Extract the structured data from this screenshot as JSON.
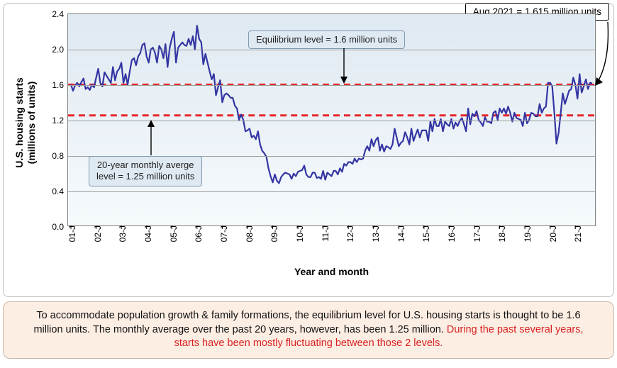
{
  "chart": {
    "type": "line",
    "yaxis_title": "U.S. housing starts\n(millions of units)",
    "xaxis_title": "Year and month",
    "title_fontsize": 14,
    "label_fontsize": 12,
    "background_gradient": [
      "#dfe9f1",
      "#f6fafd"
    ],
    "grid_color": "#9d9d9d",
    "border_color": "#7f7f7f",
    "ylim": [
      0.0,
      2.4
    ],
    "ytick_step": 0.4,
    "yticks": [
      "0.0",
      "0.4",
      "0.8",
      "1.2",
      "1.6",
      "2.0",
      "2.4"
    ],
    "xticks": [
      "01-J",
      "02-J",
      "03-J",
      "04-J",
      "05-J",
      "06-J",
      "07-J",
      "08-J",
      "09-J",
      "10-J",
      "11-J",
      "12-J",
      "13-J",
      "14-J",
      "15-J",
      "16-J",
      "17-J",
      "18-J",
      "19-J",
      "20-J",
      "21-J"
    ],
    "x_count": 249,
    "line_color": "#3335a3",
    "line_width": 2.2,
    "reference_lines": [
      {
        "value": 1.6,
        "color": "#e8272a",
        "dash": "9 6",
        "width": 3,
        "label": "Equilibrium level  = 1.6 million units"
      },
      {
        "value": 1.25,
        "color": "#e8272a",
        "dash": "9 6",
        "width": 3,
        "label": "20-year monthly averge level = 1.25 million units"
      }
    ],
    "top_callout": "Aug 2021 = 1.615 million units",
    "values": [
      1.6,
      1.53,
      1.59,
      1.62,
      1.58,
      1.63,
      1.67,
      1.55,
      1.57,
      1.54,
      1.6,
      1.57,
      1.68,
      1.78,
      1.62,
      1.58,
      1.74,
      1.7,
      1.66,
      1.62,
      1.8,
      1.65,
      1.75,
      1.78,
      1.85,
      1.62,
      1.72,
      1.6,
      1.75,
      1.88,
      1.9,
      1.82,
      1.92,
      1.96,
      2.05,
      2.07,
      1.92,
      1.85,
      2.0,
      2.02,
      1.96,
      1.85,
      2.04,
      2.0,
      1.9,
      2.06,
      1.8,
      2.02,
      2.12,
      2.2,
      1.85,
      2.02,
      2.05,
      2.08,
      2.05,
      2.04,
      2.12,
      2.05,
      2.15,
      2.0,
      2.27,
      2.12,
      2.08,
      1.83,
      1.95,
      1.85,
      1.75,
      1.66,
      1.72,
      1.48,
      1.57,
      1.65,
      1.4,
      1.48,
      1.5,
      1.48,
      1.45,
      1.45,
      1.36,
      1.33,
      1.2,
      1.26,
      1.2,
      1.07,
      1.08,
      1.1,
      1.0,
      1.02,
      0.98,
      1.07,
      0.92,
      0.85,
      0.82,
      0.78,
      0.65,
      0.56,
      0.49,
      0.58,
      0.51,
      0.48,
      0.55,
      0.58,
      0.6,
      0.59,
      0.58,
      0.53,
      0.59,
      0.56,
      0.61,
      0.62,
      0.63,
      0.68,
      0.58,
      0.55,
      0.55,
      0.6,
      0.6,
      0.54,
      0.55,
      0.53,
      0.62,
      0.52,
      0.6,
      0.58,
      0.56,
      0.62,
      0.62,
      0.58,
      0.65,
      0.61,
      0.7,
      0.68,
      0.72,
      0.72,
      0.7,
      0.76,
      0.72,
      0.76,
      0.75,
      0.76,
      0.85,
      0.9,
      0.85,
      0.98,
      0.9,
      0.97,
      1.0,
      0.85,
      0.92,
      0.84,
      0.9,
      0.89,
      0.87,
      0.92,
      1.1,
      1.0,
      0.9,
      0.94,
      0.96,
      1.06,
      1.0,
      0.92,
      1.1,
      0.96,
      1.03,
      1.09,
      1.0,
      1.08,
      1.08,
      1.08,
      0.96,
      1.18,
      1.07,
      1.21,
      1.13,
      1.13,
      1.21,
      1.07,
      1.18,
      1.15,
      1.13,
      1.21,
      1.1,
      1.17,
      1.13,
      1.19,
      1.22,
      1.15,
      1.07,
      1.33,
      1.15,
      1.27,
      1.24,
      1.3,
      1.2,
      1.17,
      1.13,
      1.23,
      1.18,
      1.18,
      1.16,
      1.28,
      1.3,
      1.2,
      1.33,
      1.28,
      1.33,
      1.27,
      1.35,
      1.28,
      1.18,
      1.28,
      1.22,
      1.21,
      1.2,
      1.13,
      1.28,
      1.16,
      1.2,
      1.28,
      1.27,
      1.24,
      1.24,
      1.38,
      1.28,
      1.33,
      1.35,
      1.62,
      1.62,
      1.58,
      1.28,
      0.93,
      1.05,
      1.27,
      1.5,
      1.38,
      1.45,
      1.53,
      1.55,
      1.68,
      1.6,
      1.44,
      1.72,
      1.51,
      1.58,
      1.66,
      1.55,
      1.62,
      1.615
    ]
  },
  "callouts": {
    "equilibrium": "Equilibrium level  = 1.6 million units",
    "average_line1": "20-year monthly averge",
    "average_line2": "level = 1.25 million units",
    "latest": "Aug 2021 = 1.615 million units"
  },
  "caption": {
    "black": "To accommodate population growth & family formations, the equilibrium level for U.S. housing starts is thought to be 1.6 million units. The monthly average over the past 20 years, however, has been 1.25 million. ",
    "red": "During the past several years, starts have been mostly fluctuating between those 2 levels."
  },
  "colors": {
    "callout_bg": "#dfe9f1",
    "callout_border": "#7f9bb3",
    "caption_bg": "#fdeee4",
    "caption_border": "#c9b8a6",
    "red_text": "#d8201f"
  }
}
